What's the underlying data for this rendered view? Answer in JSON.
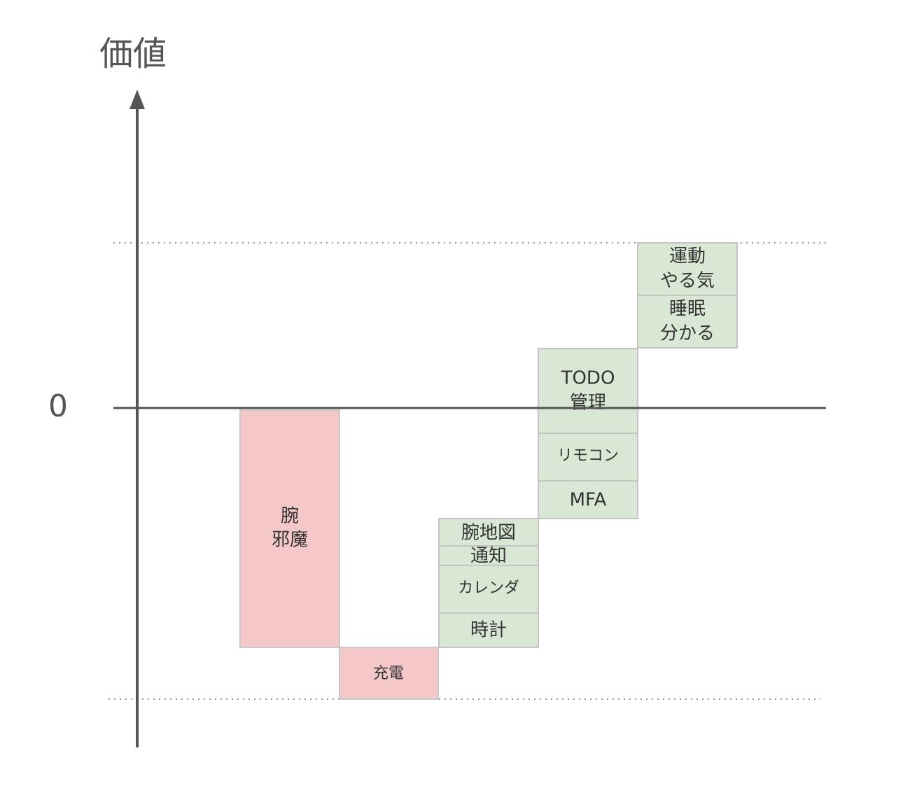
{
  "axis": {
    "label": "価値",
    "zero": "0"
  },
  "blocks": [
    {
      "lines": [
        "腕",
        "邪魔"
      ]
    },
    {
      "lines": [
        "充電"
      ]
    },
    {
      "lines": [
        "腕地図"
      ]
    },
    {
      "lines": [
        "通知"
      ]
    },
    {
      "lines": [
        "カレンダ"
      ]
    },
    {
      "lines": [
        "時計"
      ]
    },
    {
      "lines": [
        "TODO",
        "管理"
      ]
    },
    {
      "lines": [
        "リモコン"
      ]
    },
    {
      "lines": [
        "MFA"
      ]
    },
    {
      "lines": [
        "運動",
        "やる気"
      ]
    },
    {
      "lines": [
        "睡眠",
        "分かる"
      ]
    }
  ]
}
